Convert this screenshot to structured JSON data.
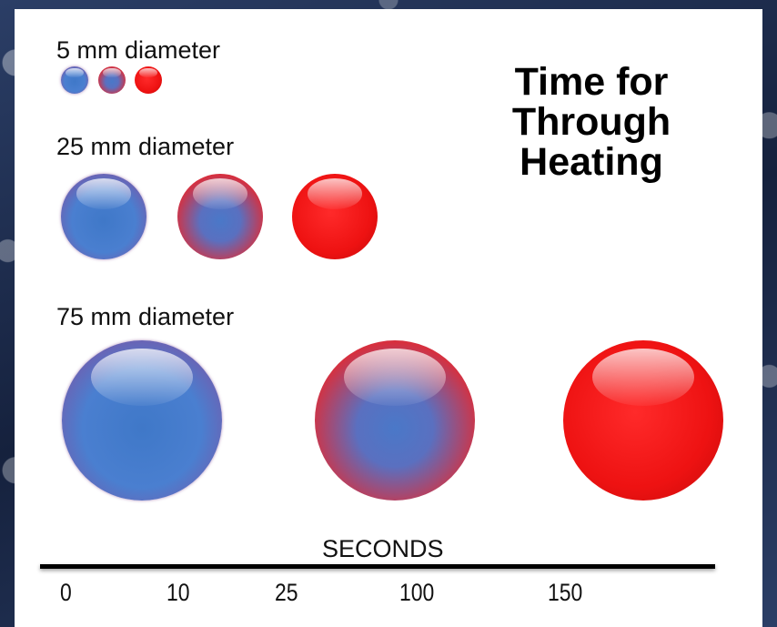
{
  "title_lines": [
    "Time for",
    "Through",
    "Heating"
  ],
  "groups": [
    {
      "label": "5 mm diameter"
    },
    {
      "label": "25 mm diameter"
    },
    {
      "label": "75 mm diameter"
    }
  ],
  "ball_states": [
    "partially heated",
    "mostly heated",
    "fully heated"
  ],
  "axis": {
    "title": "SECONDS",
    "ticks": [
      "0",
      "10",
      "25",
      "100",
      "150"
    ]
  },
  "colors": {
    "cold": "#4a7fd0",
    "hot": "#ee1212",
    "background": "#1c2b4a",
    "panel": "#ffffff"
  }
}
